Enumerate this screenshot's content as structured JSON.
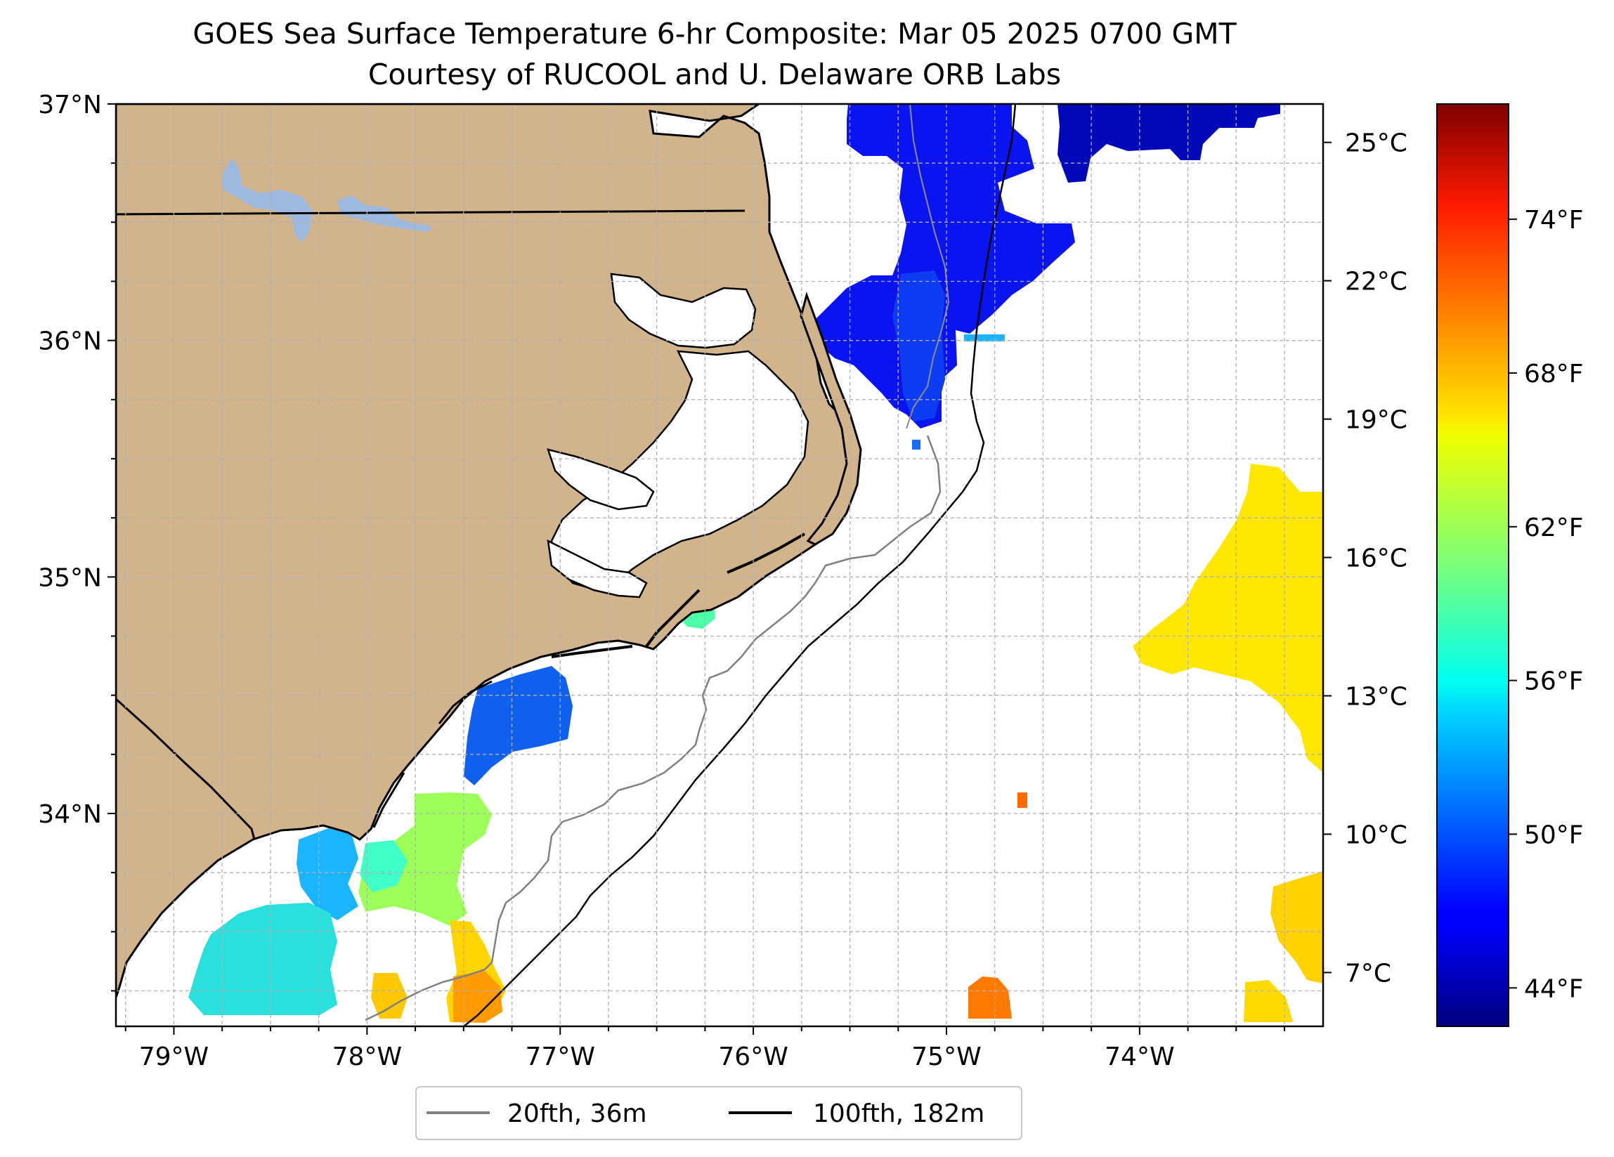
{
  "title": {
    "line1": "GOES Sea Surface Temperature 6-hr Composite: Mar 05 2025 0700 GMT",
    "line2": "Courtesy of RUCOOL and U. Delaware ORB Labs"
  },
  "map": {
    "lon_range": [
      -79.3,
      -73.05
    ],
    "lat_range": [
      33.1,
      37.0
    ],
    "lon_ticks": [
      {
        "value": -79,
        "label": "79°W"
      },
      {
        "value": -78,
        "label": "78°W"
      },
      {
        "value": -77,
        "label": "77°W"
      },
      {
        "value": -76,
        "label": "76°W"
      },
      {
        "value": -75,
        "label": "75°W"
      },
      {
        "value": -74,
        "label": "74°W"
      }
    ],
    "lat_ticks": [
      {
        "value": 37,
        "label": "37°N"
      },
      {
        "value": 36,
        "label": "36°N"
      },
      {
        "value": 35,
        "label": "35°N"
      },
      {
        "value": 34,
        "label": "34°N"
      }
    ],
    "grid": true,
    "land_color": "#D2B48C",
    "lake_color": "#9DB9E0"
  },
  "legend": {
    "placement": "bottom-center",
    "items": [
      {
        "label": "20fth, 36m",
        "color": "#808080"
      },
      {
        "label": "100fth, 182m",
        "color": "#000000"
      }
    ]
  },
  "colorbar": {
    "colormap": "jet",
    "celsius_ticks": [
      {
        "value": 25,
        "label": "25°C"
      },
      {
        "value": 22,
        "label": "22°C"
      },
      {
        "value": 19,
        "label": "19°C"
      },
      {
        "value": 16,
        "label": "16°C"
      },
      {
        "value": 13,
        "label": "13°C"
      },
      {
        "value": 10,
        "label": "10°C"
      },
      {
        "value": 7,
        "label": "7°C"
      }
    ],
    "fahrenheit_ticks": [
      {
        "value": 74,
        "label": "74°F"
      },
      {
        "value": 68,
        "label": "68°F"
      },
      {
        "value": 62,
        "label": "62°F"
      },
      {
        "value": 56,
        "label": "56°F"
      },
      {
        "value": 50,
        "label": "50°F"
      },
      {
        "value": 44,
        "label": "44°F"
      }
    ]
  }
}
